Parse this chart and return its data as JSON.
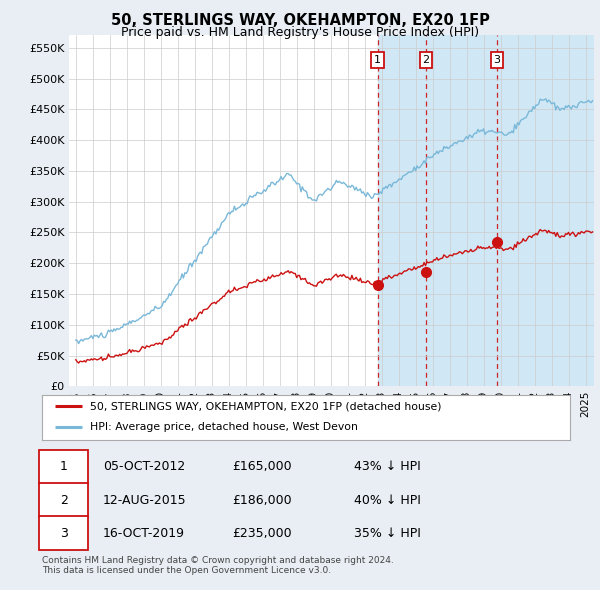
{
  "title": "50, STERLINGS WAY, OKEHAMPTON, EX20 1FP",
  "subtitle": "Price paid vs. HM Land Registry's House Price Index (HPI)",
  "yticks": [
    0,
    50000,
    100000,
    150000,
    200000,
    250000,
    300000,
    350000,
    400000,
    450000,
    500000,
    550000
  ],
  "ytick_labels": [
    "£0",
    "£50K",
    "£100K",
    "£150K",
    "£200K",
    "£250K",
    "£300K",
    "£350K",
    "£400K",
    "£450K",
    "£500K",
    "£550K"
  ],
  "hpi_color": "#7ab8d9",
  "price_color": "#cc1111",
  "vline_color": "#cc1111",
  "span_color": "#d0e8f5",
  "transactions": [
    {
      "date": 2012.77,
      "price": 165000,
      "label": "1"
    },
    {
      "date": 2015.62,
      "price": 186000,
      "label": "2"
    },
    {
      "date": 2019.79,
      "price": 235000,
      "label": "3"
    }
  ],
  "legend_property_label": "50, STERLINGS WAY, OKEHAMPTON, EX20 1FP (detached house)",
  "legend_hpi_label": "HPI: Average price, detached house, West Devon",
  "table_rows": [
    [
      "1",
      "05-OCT-2012",
      "£165,000",
      "43% ↓ HPI"
    ],
    [
      "2",
      "12-AUG-2015",
      "£186,000",
      "40% ↓ HPI"
    ],
    [
      "3",
      "16-OCT-2019",
      "£235,000",
      "35% ↓ HPI"
    ]
  ],
  "footnote": "Contains HM Land Registry data © Crown copyright and database right 2024.\nThis data is licensed under the Open Government Licence v3.0.",
  "background_color": "#e8eef4",
  "plot_bg_color": "#ffffff",
  "grid_color": "#cccccc",
  "legend_border_color": "#aaaaaa"
}
